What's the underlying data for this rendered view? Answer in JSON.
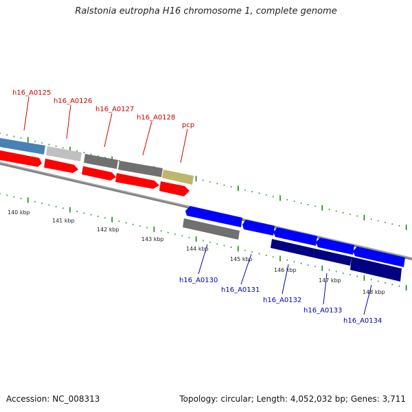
{
  "title": "Ralstonia eutropha H16 chromosome 1, complete genome",
  "footer": {
    "accession": "Accession: NC_008313",
    "summary": "Topology: circular; Length: 4,052,032 bp; Genes: 3,711"
  },
  "kbp_ticks": [
    {
      "kbp": 140,
      "label": "140 kbp"
    },
    {
      "kbp": 141,
      "label": "141 kbp"
    },
    {
      "kbp": 142,
      "label": "142 kbp"
    },
    {
      "kbp": 143,
      "label": "143 kbp"
    },
    {
      "kbp": 144,
      "label": "144 kbp"
    },
    {
      "kbp": 145,
      "label": "145 kbp"
    },
    {
      "kbp": 146,
      "label": "146 kbp"
    },
    {
      "kbp": 147,
      "label": "147 kbp"
    },
    {
      "kbp": 148,
      "label": "148 kbp"
    }
  ],
  "upper_labels": [
    "h16_A0125",
    "h16_A0126",
    "h16_A0127",
    "h16_A0128",
    "pcp"
  ],
  "lower_labels": [
    "h16_A0130",
    "h16_A0131",
    "h16_A0132",
    "h16_A0133",
    "h16_A0134"
  ],
  "colors": {
    "forward_cds": "#ff0000",
    "reverse_cds": "#0000ff",
    "dark_blue": "#000080",
    "gray": "#808080",
    "light_gray": "#c0c0c0",
    "steel_blue": "#4682b4",
    "khaki": "#bdb76b",
    "backbone": "#808080",
    "tick": "#008000",
    "upper_label": "#cc0000",
    "lower_label": "#0000aa"
  }
}
